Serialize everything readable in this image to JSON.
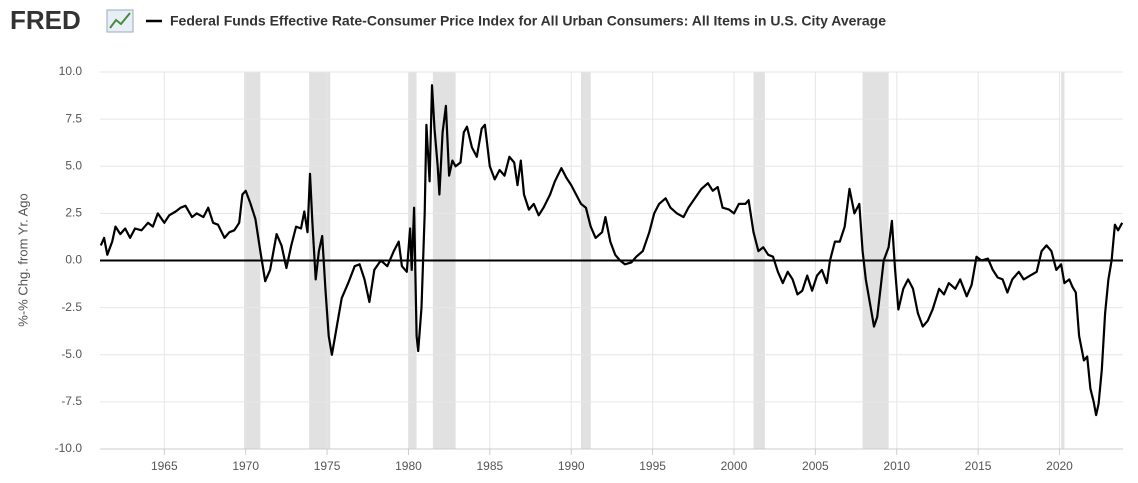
{
  "header": {
    "logo": "FRED"
  },
  "chart_data": {
    "type": "line",
    "y_label": "%-% Chg. from Yr. Ago",
    "xlim": [
      1961.05,
      2023.9
    ],
    "ylim": [
      -10,
      10
    ],
    "xticks": [
      1965,
      1970,
      1975,
      1980,
      1985,
      1990,
      1995,
      2000,
      2005,
      2010,
      2015,
      2020
    ],
    "yticks": [
      {
        "value": -10,
        "label": "-10.0"
      },
      {
        "value": -7.5,
        "label": "-7.5"
      },
      {
        "value": -5,
        "label": "-5.0"
      },
      {
        "value": -2.5,
        "label": "-2.5"
      },
      {
        "value": 0,
        "label": "0.0"
      },
      {
        "value": 2.5,
        "label": "2.5"
      },
      {
        "value": 5,
        "label": "5.0"
      },
      {
        "value": 7.5,
        "label": "7.5"
      },
      {
        "value": 10,
        "label": "10.0"
      }
    ],
    "grid": true,
    "recessions": [
      [
        1969.9,
        1970.9
      ],
      [
        1973.9,
        1975.2
      ],
      [
        1980.0,
        1980.5
      ],
      [
        1981.5,
        1982.9
      ],
      [
        1990.6,
        1991.2
      ],
      [
        2001.2,
        2001.9
      ],
      [
        2007.9,
        2009.5
      ],
      [
        2020.1,
        2020.3
      ]
    ],
    "x": [
      1961.1,
      1961.3,
      1961.5,
      1961.8,
      1962.0,
      1962.3,
      1962.6,
      1962.9,
      1963.2,
      1963.6,
      1964.0,
      1964.3,
      1964.6,
      1965.0,
      1965.3,
      1965.7,
      1966.0,
      1966.3,
      1966.7,
      1967.0,
      1967.4,
      1967.7,
      1968.0,
      1968.3,
      1968.7,
      1969.0,
      1969.3,
      1969.6,
      1969.8,
      1970.0,
      1970.3,
      1970.6,
      1970.9,
      1971.2,
      1971.5,
      1971.9,
      1972.2,
      1972.5,
      1972.8,
      1973.1,
      1973.4,
      1973.6,
      1973.8,
      1973.95,
      1974.1,
      1974.3,
      1974.5,
      1974.7,
      1974.9,
      1975.1,
      1975.3,
      1975.6,
      1975.9,
      1976.3,
      1976.7,
      1977.0,
      1977.3,
      1977.6,
      1977.9,
      1978.3,
      1978.7,
      1979.1,
      1979.4,
      1979.6,
      1979.9,
      1980.1,
      1980.2,
      1980.35,
      1980.5,
      1980.6,
      1980.8,
      1981.0,
      1981.1,
      1981.3,
      1981.45,
      1981.6,
      1981.8,
      1981.9,
      1982.1,
      1982.3,
      1982.5,
      1982.7,
      1982.9,
      1983.2,
      1983.4,
      1983.6,
      1983.9,
      1984.2,
      1984.5,
      1984.7,
      1985.0,
      1985.3,
      1985.6,
      1985.9,
      1986.2,
      1986.5,
      1986.7,
      1986.9,
      1987.1,
      1987.4,
      1987.7,
      1988.0,
      1988.3,
      1988.7,
      1989.0,
      1989.4,
      1989.7,
      1990.0,
      1990.3,
      1990.6,
      1990.9,
      1991.2,
      1991.5,
      1991.9,
      1992.1,
      1992.4,
      1992.7,
      1993.0,
      1993.3,
      1993.7,
      1994.0,
      1994.4,
      1994.8,
      1995.1,
      1995.4,
      1995.8,
      1996.1,
      1996.5,
      1996.9,
      1997.2,
      1997.6,
      1998.0,
      1998.4,
      1998.7,
      1999.0,
      1999.3,
      1999.7,
      2000.0,
      2000.3,
      2000.7,
      2000.9,
      2001.2,
      2001.5,
      2001.8,
      2002.1,
      2002.4,
      2002.7,
      2003.0,
      2003.3,
      2003.6,
      2003.9,
      2004.2,
      2004.5,
      2004.8,
      2005.1,
      2005.4,
      2005.7,
      2005.9,
      2006.2,
      2006.5,
      2006.8,
      2007.1,
      2007.4,
      2007.7,
      2007.9,
      2008.1,
      2008.4,
      2008.6,
      2008.8,
      2009.0,
      2009.2,
      2009.5,
      2009.7,
      2009.9,
      2010.1,
      2010.4,
      2010.7,
      2011.0,
      2011.3,
      2011.6,
      2011.9,
      2012.2,
      2012.6,
      2012.9,
      2013.2,
      2013.6,
      2013.9,
      2014.3,
      2014.6,
      2014.9,
      2015.2,
      2015.6,
      2015.9,
      2016.2,
      2016.5,
      2016.8,
      2017.1,
      2017.5,
      2017.8,
      2018.2,
      2018.6,
      2018.9,
      2019.2,
      2019.5,
      2019.8,
      2020.1,
      2020.3,
      2020.6,
      2020.8,
      2021.0,
      2021.2,
      2021.5,
      2021.7,
      2021.9,
      2022.1,
      2022.25,
      2022.4,
      2022.6,
      2022.8,
      2023.0,
      2023.2,
      2023.4,
      2023.6,
      2023.85
    ],
    "series": [
      {
        "name": "Federal Funds Effective Rate-Consumer Price Index for All Urban Consumers: All Items in U.S. City Average",
        "color": "#000000",
        "values": [
          0.8,
          1.2,
          0.3,
          1.0,
          1.8,
          1.4,
          1.7,
          1.2,
          1.7,
          1.6,
          2.0,
          1.8,
          2.5,
          2.0,
          2.4,
          2.6,
          2.8,
          2.9,
          2.3,
          2.5,
          2.3,
          2.8,
          2.0,
          1.9,
          1.2,
          1.5,
          1.6,
          2.0,
          3.5,
          3.7,
          3.0,
          2.2,
          0.5,
          -1.1,
          -0.5,
          1.4,
          0.8,
          -0.4,
          0.8,
          1.8,
          1.7,
          2.6,
          1.5,
          4.6,
          2.0,
          -1.0,
          0.5,
          1.3,
          -1.5,
          -4.0,
          -5.0,
          -3.5,
          -2.0,
          -1.2,
          -0.3,
          -0.2,
          -1.0,
          -2.2,
          -0.5,
          0.0,
          -0.3,
          0.5,
          1.0,
          -0.3,
          -0.6,
          1.7,
          -0.5,
          2.8,
          -4.0,
          -4.8,
          -2.5,
          2.5,
          7.2,
          4.2,
          9.3,
          7.0,
          5.0,
          3.5,
          6.8,
          8.2,
          4.5,
          5.3,
          5.0,
          5.2,
          6.8,
          7.1,
          6.0,
          5.5,
          7.0,
          7.2,
          5.0,
          4.3,
          4.8,
          4.5,
          5.5,
          5.2,
          4.0,
          5.3,
          3.5,
          2.7,
          3.0,
          2.4,
          2.8,
          3.5,
          4.2,
          4.9,
          4.4,
          4.0,
          3.5,
          3.0,
          2.8,
          1.8,
          1.2,
          1.5,
          2.3,
          1.0,
          0.3,
          0.0,
          -0.2,
          -0.1,
          0.2,
          0.5,
          1.5,
          2.5,
          3.0,
          3.3,
          2.8,
          2.5,
          2.3,
          2.8,
          3.3,
          3.8,
          4.1,
          3.7,
          3.9,
          2.8,
          2.7,
          2.5,
          3.0,
          3.0,
          3.2,
          1.5,
          0.5,
          0.7,
          0.3,
          0.2,
          -0.6,
          -1.2,
          -0.6,
          -1.0,
          -1.8,
          -1.6,
          -0.8,
          -1.6,
          -0.8,
          -0.5,
          -1.2,
          0.0,
          1.0,
          1.0,
          1.8,
          3.8,
          2.5,
          3.0,
          0.5,
          -1.0,
          -2.5,
          -3.5,
          -3.0,
          -1.5,
          0.0,
          0.7,
          2.1,
          -0.5,
          -2.6,
          -1.5,
          -1.0,
          -1.5,
          -2.8,
          -3.5,
          -3.2,
          -2.6,
          -1.5,
          -1.8,
          -1.2,
          -1.5,
          -1.0,
          -1.9,
          -1.3,
          0.2,
          0.0,
          0.1,
          -0.5,
          -0.9,
          -1.0,
          -1.7,
          -1.0,
          -0.6,
          -1.0,
          -0.8,
          -0.6,
          0.5,
          0.8,
          0.5,
          -0.5,
          -0.2,
          -1.2,
          -1.0,
          -1.4,
          -1.7,
          -4.0,
          -5.3,
          -5.1,
          -6.8,
          -7.5,
          -8.2,
          -7.6,
          -5.8,
          -2.8,
          -1.0,
          0.0,
          1.9,
          1.6,
          2.0
        ]
      }
    ]
  }
}
